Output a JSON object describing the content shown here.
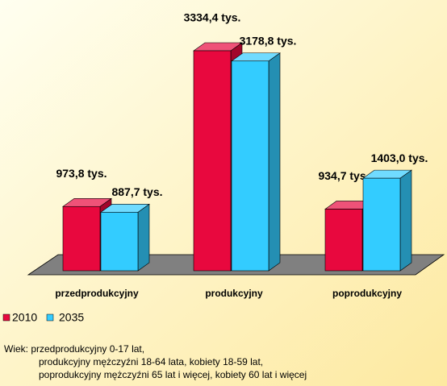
{
  "chart_data": {
    "type": "bar3d",
    "categories": [
      "przedprodukcyjny",
      "produkcyjny",
      "poprodukcyjny"
    ],
    "series": [
      {
        "name": "2010",
        "color": "#e8083e",
        "values": [
          973.8,
          3334.4,
          934.7
        ],
        "value_labels": [
          "973,8 tys.",
          "3334,4 tys.",
          "934,7 tys."
        ]
      },
      {
        "name": "2035",
        "color": "#33ccff",
        "values": [
          887.7,
          3178.8,
          1403.0
        ],
        "value_labels": [
          "887,7 tys.",
          "3178,8 tys.",
          "1403,0 tys."
        ]
      }
    ],
    "footnote": [
      "Wiek: przedprodukcyjny 0-17 lat,",
      "produkcyjny mężczyźni 18-64 lata, kobiety 18-59 lat,",
      "poprodukcyjny mężczyźni 65 lat i więcej, kobiety 60 lat i więcej"
    ]
  }
}
